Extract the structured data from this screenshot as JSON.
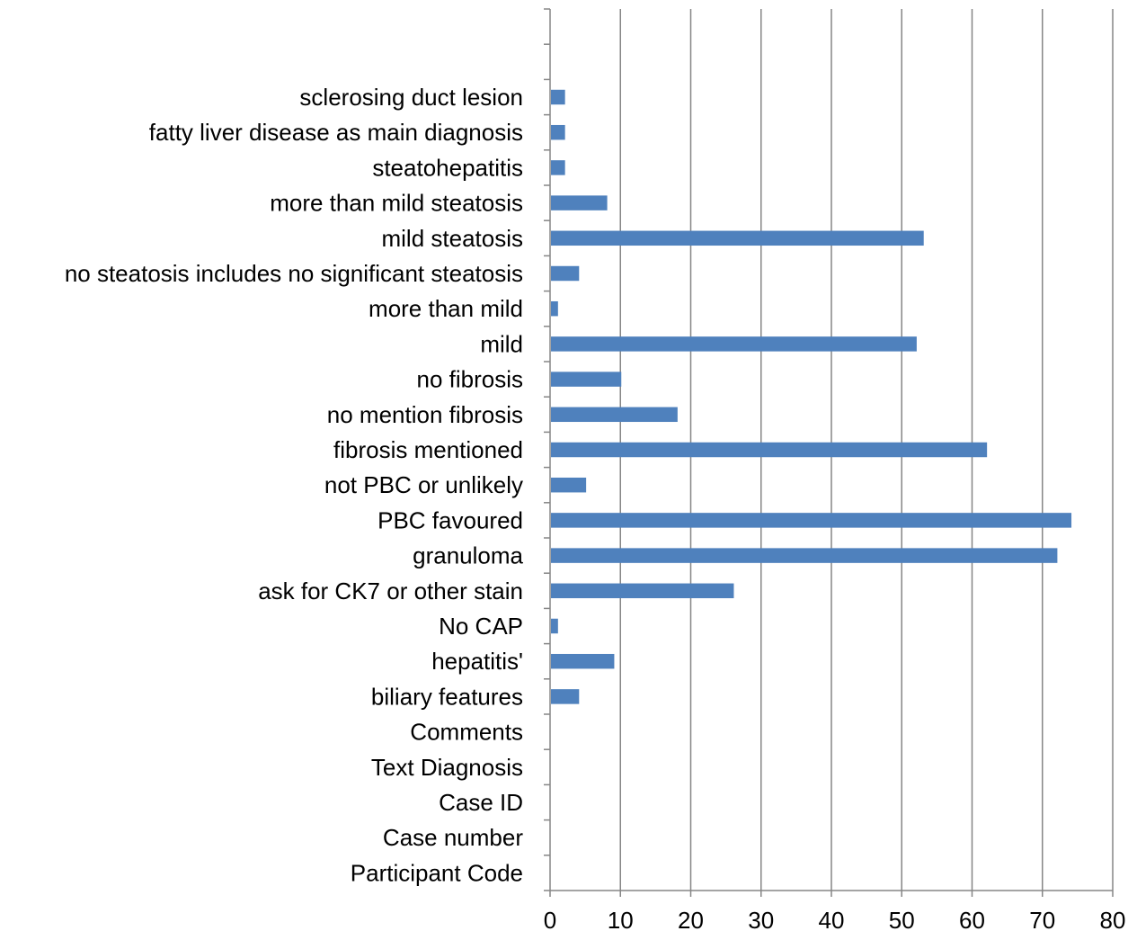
{
  "chart_data": {
    "type": "bar",
    "orientation": "horizontal",
    "title": "",
    "xlabel": "",
    "ylabel": "",
    "xlim": [
      0,
      80
    ],
    "x_ticks": [
      0,
      10,
      20,
      30,
      40,
      50,
      60,
      70,
      80
    ],
    "grid": "vertical",
    "legend": "none",
    "bar_color": "#4f81bd",
    "categories": [
      "Participant Code",
      "Case number",
      "Case ID",
      "Text Diagnosis",
      "Comments",
      "biliary features",
      "hepatitis'",
      "No CAP",
      "ask for CK7 or other stain",
      "granuloma",
      "PBC favoured",
      "not PBC or unlikely",
      "fibrosis mentioned",
      "no mention fibrosis",
      "no fibrosis",
      "mild",
      "more than mild",
      "no steatosis includes no significant steatosis",
      "mild steatosis",
      "more than mild steatosis",
      "steatohepatitis",
      "fatty liver disease as main diagnosis",
      "sclerosing duct lesion",
      "",
      ""
    ],
    "values": [
      0,
      0,
      0,
      0,
      0,
      4,
      9,
      1,
      26,
      72,
      74,
      5,
      62,
      18,
      10,
      52,
      1,
      4,
      53,
      8,
      2,
      2,
      2,
      null,
      null
    ]
  }
}
